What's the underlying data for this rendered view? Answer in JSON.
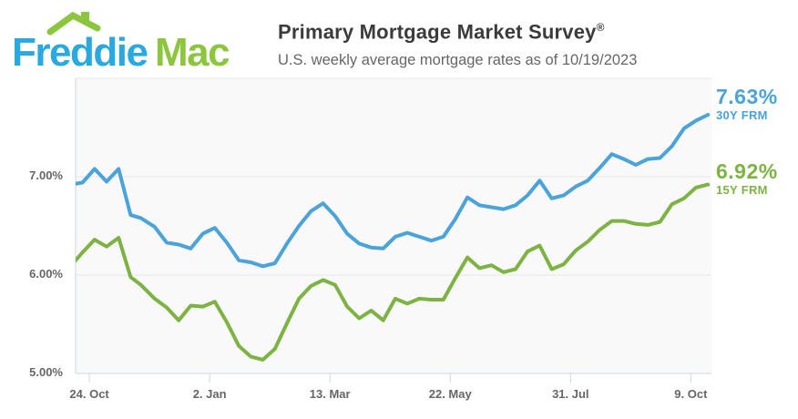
{
  "header": {
    "logo": {
      "word1": "Freddie",
      "word2": "Mac",
      "blue": "#2aa9e0",
      "green": "#8cc63f"
    },
    "title": "Primary Mortgage Market Survey",
    "title_mark": "®",
    "subtitle": "U.S. weekly average mortgage rates as of 10/19/2023"
  },
  "chart_data": {
    "type": "line",
    "title": "",
    "xlabel": "",
    "ylabel": "",
    "ylim": [
      5.0,
      8.0
    ],
    "x_range": [
      "2022-10-16",
      "2023-10-21"
    ],
    "grid_on": true,
    "y_gridlines": [
      5,
      6,
      7,
      8
    ],
    "y_ticks": [
      {
        "value": 7,
        "label": "7.00%"
      },
      {
        "value": 6,
        "label": "6.00%"
      },
      {
        "value": 5,
        "label": "5.00%"
      }
    ],
    "x_ticks": [
      {
        "date": "2022-10-24",
        "label": "24. Oct"
      },
      {
        "date": "2023-01-02",
        "label": "2. Jan"
      },
      {
        "date": "2023-03-13",
        "label": "13. Mar"
      },
      {
        "date": "2023-05-22",
        "label": "22. May"
      },
      {
        "date": "2023-07-31",
        "label": "31. Jul"
      },
      {
        "date": "2023-10-09",
        "label": "9. Oct"
      }
    ],
    "dates": [
      "2022-10-13",
      "2022-10-20",
      "2022-10-27",
      "2022-11-03",
      "2022-11-10",
      "2022-11-17",
      "2022-11-23",
      "2022-12-01",
      "2022-12-08",
      "2022-12-15",
      "2022-12-22",
      "2022-12-29",
      "2023-01-05",
      "2023-01-12",
      "2023-01-19",
      "2023-01-26",
      "2023-02-02",
      "2023-02-09",
      "2023-02-16",
      "2023-02-23",
      "2023-03-02",
      "2023-03-09",
      "2023-03-16",
      "2023-03-23",
      "2023-03-30",
      "2023-04-06",
      "2023-04-13",
      "2023-04-20",
      "2023-04-27",
      "2023-05-04",
      "2023-05-11",
      "2023-05-18",
      "2023-05-25",
      "2023-06-01",
      "2023-06-08",
      "2023-06-15",
      "2023-06-22",
      "2023-06-29",
      "2023-07-06",
      "2023-07-13",
      "2023-07-20",
      "2023-07-27",
      "2023-08-03",
      "2023-08-10",
      "2023-08-17",
      "2023-08-24",
      "2023-08-31",
      "2023-09-07",
      "2023-09-14",
      "2023-09-21",
      "2023-09-28",
      "2023-10-05",
      "2023-10-12",
      "2023-10-19"
    ],
    "series": [
      {
        "name": "30Y FRM",
        "final_label": "7.63%",
        "color": "#4aa3da",
        "values": [
          6.92,
          6.94,
          7.08,
          6.95,
          7.08,
          6.61,
          6.58,
          6.49,
          6.33,
          6.31,
          6.27,
          6.42,
          6.48,
          6.33,
          6.15,
          6.13,
          6.09,
          6.12,
          6.32,
          6.5,
          6.65,
          6.73,
          6.6,
          6.42,
          6.32,
          6.28,
          6.27,
          6.39,
          6.43,
          6.39,
          6.35,
          6.39,
          6.57,
          6.79,
          6.71,
          6.69,
          6.67,
          6.71,
          6.81,
          6.96,
          6.78,
          6.81,
          6.9,
          6.96,
          7.09,
          7.23,
          7.18,
          7.12,
          7.18,
          7.19,
          7.31,
          7.49,
          7.57,
          7.63
        ]
      },
      {
        "name": "15Y FRM",
        "final_label": "6.92%",
        "color": "#7db343",
        "values": [
          6.09,
          6.23,
          6.36,
          6.29,
          6.38,
          5.98,
          5.9,
          5.76,
          5.67,
          5.54,
          5.69,
          5.68,
          5.73,
          5.52,
          5.28,
          5.17,
          5.14,
          5.25,
          5.51,
          5.76,
          5.89,
          5.95,
          5.9,
          5.68,
          5.56,
          5.64,
          5.54,
          5.76,
          5.71,
          5.76,
          5.75,
          5.75,
          5.97,
          6.18,
          6.07,
          6.1,
          6.03,
          6.06,
          6.24,
          6.3,
          6.06,
          6.11,
          6.25,
          6.34,
          6.46,
          6.55,
          6.55,
          6.52,
          6.51,
          6.54,
          6.72,
          6.78,
          6.89,
          6.92
        ]
      }
    ],
    "legend_position": "right-of-line-ends",
    "plot_bg": "#f9f9f9",
    "grid_color": "#e7e7e7",
    "axis_color": "#ccd6eb",
    "label_color": "#666666"
  }
}
